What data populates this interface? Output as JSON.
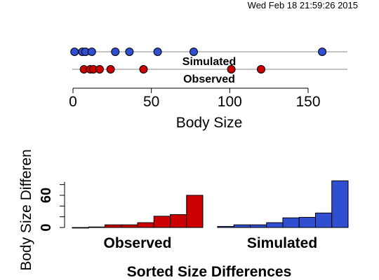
{
  "timestamp": "Wed Feb 18 21:59:26 2015",
  "chart_data": [
    {
      "type": "scatter",
      "title": "",
      "xlabel": "Body Size",
      "xlim": [
        0,
        175
      ],
      "xticks": [
        0,
        50,
        100,
        150
      ],
      "grid": false,
      "series": [
        {
          "name": "Simulated",
          "color": "#2f4fd0",
          "values": [
            1,
            6,
            8,
            12,
            27,
            36,
            54,
            77,
            159
          ]
        },
        {
          "name": "Observed",
          "color": "#cc0000",
          "values": [
            7,
            11,
            13,
            17,
            24,
            45,
            101,
            120
          ]
        }
      ]
    },
    {
      "type": "bar",
      "title": "",
      "xlabel": "Sorted Size Differences",
      "ylabel": "Body Size Differen",
      "ylim": [
        0,
        85
      ],
      "yticks": [
        0,
        60
      ],
      "grid": false,
      "groups": [
        {
          "name": "Observed",
          "color": "#cc0000",
          "values": [
            0,
            1,
            5,
            5,
            9,
            21,
            24,
            60
          ]
        },
        {
          "name": "Simulated",
          "color": "#2f4fd0",
          "values": [
            2,
            5,
            5,
            9,
            18,
            19,
            27,
            87
          ]
        }
      ]
    }
  ]
}
